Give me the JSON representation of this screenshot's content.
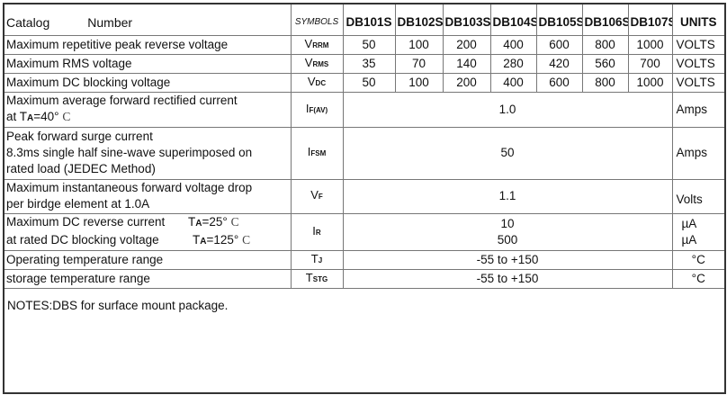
{
  "header": {
    "catalog": "Catalog",
    "number": "Number",
    "symbols": "SYMBOLS",
    "parts": [
      "DB101S",
      "DB102S",
      "DB103S",
      "DB104S",
      "DB105S",
      "DB106S",
      "DB107S"
    ],
    "units": "UNITS"
  },
  "rows": [
    {
      "desc": "Maximum repetitive peak reverse voltage",
      "sym": "V",
      "sub": "RRM",
      "values": [
        "50",
        "100",
        "200",
        "400",
        "600",
        "800",
        "1000"
      ],
      "unit": "VOLTS"
    },
    {
      "desc": "Maximum RMS voltage",
      "sym": "V",
      "sub": "RMS",
      "values": [
        "35",
        "70",
        "140",
        "280",
        "420",
        "560",
        "700"
      ],
      "unit": "VOLTS"
    },
    {
      "desc": "Maximum DC blocking voltage",
      "sym": "V",
      "sub": "DC",
      "values": [
        "50",
        "100",
        "200",
        "400",
        "600",
        "800",
        "1000"
      ],
      "unit": "VOLTS"
    },
    {
      "desc1": "Maximum average forward rectified current",
      "desc2": "at T",
      "desc2_sub": "A",
      "desc2_tail": "=40°",
      "deg": "C",
      "sym": "I",
      "sub": "F(AV)",
      "value": "1.0",
      "unit": "Amps"
    },
    {
      "desc1": "Peak forward surge current",
      "desc2": "8.3ms single half sine-wave superimposed on",
      "desc3": "rated load (JEDEC Method)",
      "sym": "I",
      "sub": "FSM",
      "value": "50",
      "unit": "Amps"
    },
    {
      "desc1": "Maximum instantaneous forward voltage drop",
      "desc2": "per birdge element at 1.0A",
      "sym": "V",
      "sub": "F",
      "value": "1.1",
      "unit": "Volts"
    },
    {
      "desc1": "Maximum DC reverse current",
      "cond1": "T",
      "cond1_sub": "A",
      "cond1_tail": "=25°",
      "desc2": "at rated DC blocking voltage",
      "cond2": "T",
      "cond2_sub": "A",
      "cond2_tail": "=125°",
      "deg": "C",
      "sym": "I",
      "sub": "R",
      "value1": "10",
      "value2": "500",
      "unit1": "µA",
      "unit2": "µA"
    },
    {
      "desc": "Operating temperature range",
      "sym": "T",
      "sub": "J",
      "value": "-55 to +150",
      "unit": "°C"
    },
    {
      "desc": "storage temperature range",
      "sym": "T",
      "sub": "STG",
      "value": "-55 to +150",
      "unit": "°C"
    }
  ],
  "notes": "NOTES:DBS for surface mount package."
}
